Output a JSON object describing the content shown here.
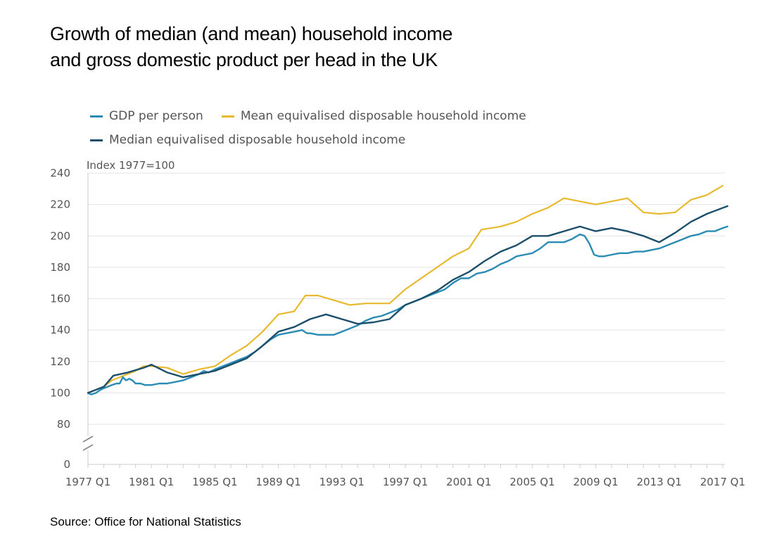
{
  "title_line1": "Growth of median (and mean) household income",
  "title_line2": "and gross domestic product per head in the UK",
  "source": "Source: Office for National Statistics",
  "chart_data": {
    "type": "line",
    "title": "Growth of median (and mean) household income and gross domestic product per head in the UK",
    "ylabel": "Index 1977=100",
    "xlabel": "",
    "ylim": [
      0,
      240
    ],
    "axis_break": "between 0 and 80",
    "y_ticks": [
      0,
      80,
      100,
      120,
      140,
      160,
      180,
      200,
      220,
      240
    ],
    "x_range": [
      1977,
      2017.5
    ],
    "x_ticks": [
      {
        "year": 1977,
        "label": "1977 Q1"
      },
      {
        "year": 1981,
        "label": "1981 Q1"
      },
      {
        "year": 1985,
        "label": "1985 Q1"
      },
      {
        "year": 1989,
        "label": "1989 Q1"
      },
      {
        "year": 1993,
        "label": "1993 Q1"
      },
      {
        "year": 1997,
        "label": "1997 Q1"
      },
      {
        "year": 2001,
        "label": "2001 Q1"
      },
      {
        "year": 2005,
        "label": "2005 Q1"
      },
      {
        "year": 2009,
        "label": "2009 Q1"
      },
      {
        "year": 2013,
        "label": "2013 Q1"
      },
      {
        "year": 2017,
        "label": "2017 Q1"
      }
    ],
    "grid": true,
    "legend_position": "top",
    "series": [
      {
        "name": "GDP per person",
        "color": "#2a8cb5",
        "points": [
          [
            1977.0,
            100
          ],
          [
            1977.2,
            99
          ],
          [
            1977.5,
            100
          ],
          [
            1977.8,
            102
          ],
          [
            1978.0,
            103
          ],
          [
            1978.5,
            105
          ],
          [
            1978.8,
            106
          ],
          [
            1979.0,
            106
          ],
          [
            1979.2,
            110
          ],
          [
            1979.4,
            108
          ],
          [
            1979.6,
            109
          ],
          [
            1979.8,
            108
          ],
          [
            1980.0,
            106
          ],
          [
            1980.3,
            106
          ],
          [
            1980.6,
            105
          ],
          [
            1981.0,
            105
          ],
          [
            1981.5,
            106
          ],
          [
            1982.0,
            106
          ],
          [
            1982.5,
            107
          ],
          [
            1983.0,
            108
          ],
          [
            1983.5,
            110
          ],
          [
            1984.0,
            112
          ],
          [
            1984.3,
            114
          ],
          [
            1984.6,
            113
          ],
          [
            1985.0,
            115
          ],
          [
            1985.5,
            117
          ],
          [
            1986.0,
            119
          ],
          [
            1986.5,
            121
          ],
          [
            1987.0,
            123
          ],
          [
            1987.5,
            126
          ],
          [
            1988.0,
            130
          ],
          [
            1988.5,
            134
          ],
          [
            1989.0,
            137
          ],
          [
            1989.5,
            138
          ],
          [
            1990.0,
            139
          ],
          [
            1990.5,
            140
          ],
          [
            1990.8,
            138
          ],
          [
            1991.0,
            138
          ],
          [
            1991.5,
            137
          ],
          [
            1992.0,
            137
          ],
          [
            1992.5,
            137
          ],
          [
            1993.0,
            139
          ],
          [
            1993.5,
            141
          ],
          [
            1994.0,
            143
          ],
          [
            1994.5,
            146
          ],
          [
            1995.0,
            148
          ],
          [
            1995.5,
            149
          ],
          [
            1996.0,
            151
          ],
          [
            1996.5,
            153
          ],
          [
            1997.0,
            156
          ],
          [
            1997.5,
            158
          ],
          [
            1998.0,
            160
          ],
          [
            1998.5,
            162
          ],
          [
            1999.0,
            164
          ],
          [
            1999.5,
            166
          ],
          [
            2000.0,
            170
          ],
          [
            2000.5,
            173
          ],
          [
            2001.0,
            173
          ],
          [
            2001.5,
            176
          ],
          [
            2002.0,
            177
          ],
          [
            2002.5,
            179
          ],
          [
            2003.0,
            182
          ],
          [
            2003.5,
            184
          ],
          [
            2004.0,
            187
          ],
          [
            2004.5,
            188
          ],
          [
            2005.0,
            189
          ],
          [
            2005.5,
            192
          ],
          [
            2006.0,
            196
          ],
          [
            2006.5,
            196
          ],
          [
            2007.0,
            196
          ],
          [
            2007.5,
            198
          ],
          [
            2008.0,
            201
          ],
          [
            2008.3,
            200
          ],
          [
            2008.6,
            195
          ],
          [
            2008.9,
            188
          ],
          [
            2009.2,
            187
          ],
          [
            2009.5,
            187
          ],
          [
            2010.0,
            188
          ],
          [
            2010.5,
            189
          ],
          [
            2011.0,
            189
          ],
          [
            2011.5,
            190
          ],
          [
            2012.0,
            190
          ],
          [
            2012.5,
            191
          ],
          [
            2013.0,
            192
          ],
          [
            2013.5,
            194
          ],
          [
            2014.0,
            196
          ],
          [
            2014.5,
            198
          ],
          [
            2015.0,
            200
          ],
          [
            2015.5,
            201
          ],
          [
            2016.0,
            203
          ],
          [
            2016.5,
            203
          ],
          [
            2017.0,
            205
          ],
          [
            2017.3,
            206
          ]
        ]
      },
      {
        "name": "Mean equivalised disposable household income",
        "color": "#e8b92e",
        "points": [
          [
            1977.0,
            100
          ],
          [
            1978.0,
            104
          ],
          [
            1978.5,
            108
          ],
          [
            1979.0,
            110
          ],
          [
            1980.0,
            114
          ],
          [
            1980.5,
            117
          ],
          [
            1981.0,
            117
          ],
          [
            1982.0,
            116
          ],
          [
            1983.0,
            112
          ],
          [
            1984.0,
            115
          ],
          [
            1985.0,
            117
          ],
          [
            1986.0,
            124
          ],
          [
            1987.0,
            130
          ],
          [
            1988.0,
            139
          ],
          [
            1989.0,
            150
          ],
          [
            1990.0,
            152
          ],
          [
            1990.7,
            162
          ],
          [
            1991.5,
            162
          ],
          [
            1992.5,
            159
          ],
          [
            1993.5,
            156
          ],
          [
            1994.5,
            157
          ],
          [
            1995.5,
            157
          ],
          [
            1996.0,
            157
          ],
          [
            1997.0,
            166
          ],
          [
            1998.0,
            173
          ],
          [
            1999.0,
            180
          ],
          [
            2000.0,
            187
          ],
          [
            2001.0,
            192
          ],
          [
            2001.8,
            204
          ],
          [
            2003.0,
            206
          ],
          [
            2004.0,
            209
          ],
          [
            2005.0,
            214
          ],
          [
            2006.0,
            218
          ],
          [
            2007.0,
            224
          ],
          [
            2008.0,
            222
          ],
          [
            2009.0,
            220
          ],
          [
            2010.0,
            222
          ],
          [
            2011.0,
            224
          ],
          [
            2012.0,
            215
          ],
          [
            2013.0,
            214
          ],
          [
            2014.0,
            215
          ],
          [
            2015.0,
            223
          ],
          [
            2016.0,
            226
          ],
          [
            2017.0,
            232
          ]
        ]
      },
      {
        "name": "Median equivalised disposable household income",
        "color": "#1b4f6b",
        "points": [
          [
            1977.0,
            100
          ],
          [
            1978.0,
            104
          ],
          [
            1978.6,
            111
          ],
          [
            1979.5,
            113
          ],
          [
            1980.5,
            116
          ],
          [
            1981.0,
            118
          ],
          [
            1982.0,
            113
          ],
          [
            1983.0,
            110
          ],
          [
            1984.0,
            112
          ],
          [
            1985.0,
            114
          ],
          [
            1986.0,
            118
          ],
          [
            1987.0,
            122
          ],
          [
            1988.0,
            130
          ],
          [
            1989.0,
            139
          ],
          [
            1990.0,
            142
          ],
          [
            1991.0,
            147
          ],
          [
            1992.0,
            150
          ],
          [
            1993.0,
            147
          ],
          [
            1994.0,
            144
          ],
          [
            1995.0,
            145
          ],
          [
            1996.0,
            147
          ],
          [
            1997.0,
            156
          ],
          [
            1998.0,
            160
          ],
          [
            1999.0,
            165
          ],
          [
            2000.0,
            172
          ],
          [
            2001.0,
            177
          ],
          [
            2002.0,
            184
          ],
          [
            2003.0,
            190
          ],
          [
            2004.0,
            194
          ],
          [
            2005.0,
            200
          ],
          [
            2006.0,
            200
          ],
          [
            2007.0,
            203
          ],
          [
            2008.0,
            206
          ],
          [
            2009.0,
            203
          ],
          [
            2010.0,
            205
          ],
          [
            2011.0,
            203
          ],
          [
            2012.0,
            200
          ],
          [
            2013.0,
            196
          ],
          [
            2014.0,
            202
          ],
          [
            2015.0,
            209
          ],
          [
            2016.0,
            214
          ],
          [
            2017.3,
            219
          ]
        ]
      }
    ]
  }
}
